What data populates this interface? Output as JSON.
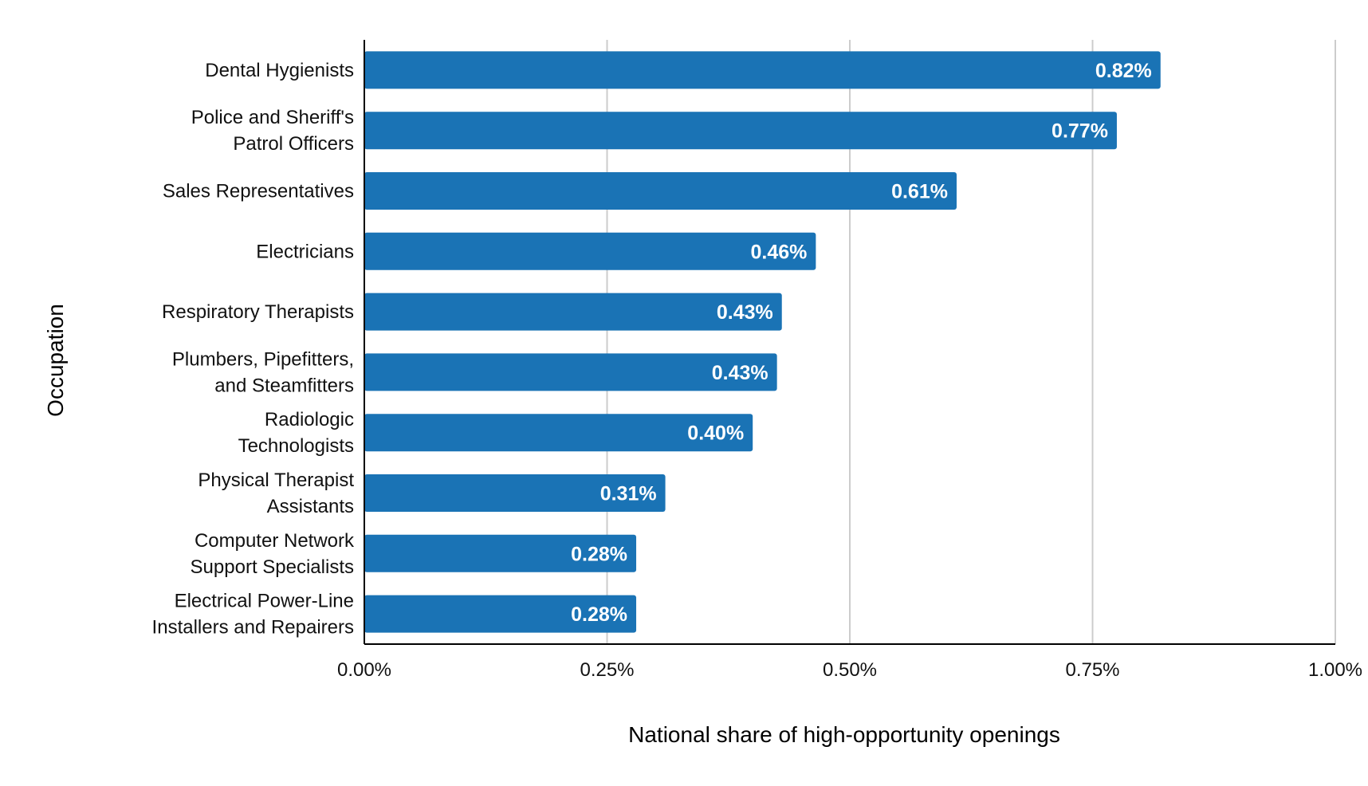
{
  "chart_data": {
    "type": "bar",
    "orientation": "horizontal",
    "categories": [
      [
        "Dental Hygienists"
      ],
      [
        "Police and Sheriff's",
        "Patrol Officers"
      ],
      [
        "Sales Representatives"
      ],
      [
        "Electricians"
      ],
      [
        "Respiratory Therapists"
      ],
      [
        "Plumbers, Pipefitters,",
        "and Steamfitters"
      ],
      [
        "Radiologic",
        "Technologists"
      ],
      [
        "Physical Therapist",
        "Assistants"
      ],
      [
        "Computer Network",
        "Support Specialists"
      ],
      [
        "Electrical Power-Line",
        "Installers and Repairers"
      ]
    ],
    "values": [
      0.82,
      0.775,
      0.61,
      0.465,
      0.43,
      0.425,
      0.4,
      0.31,
      0.28,
      0.28
    ],
    "data_labels": [
      "0.82%",
      "0.77%",
      "0.61%",
      "0.46%",
      "0.43%",
      "0.43%",
      "0.40%",
      "0.31%",
      "0.28%",
      "0.28%"
    ],
    "xlabel": "National share of high-opportunity openings",
    "ylabel": "Occupation",
    "xlim": [
      0,
      1.0
    ],
    "xticks": [
      0,
      0.25,
      0.5,
      0.75,
      1.0
    ],
    "xtick_labels": [
      "0.00%",
      "0.25%",
      "0.50%",
      "0.75%",
      "1.00%"
    ],
    "grid": "vertical",
    "bar_color": "#1a73b5",
    "grid_color": "#cccccc"
  }
}
